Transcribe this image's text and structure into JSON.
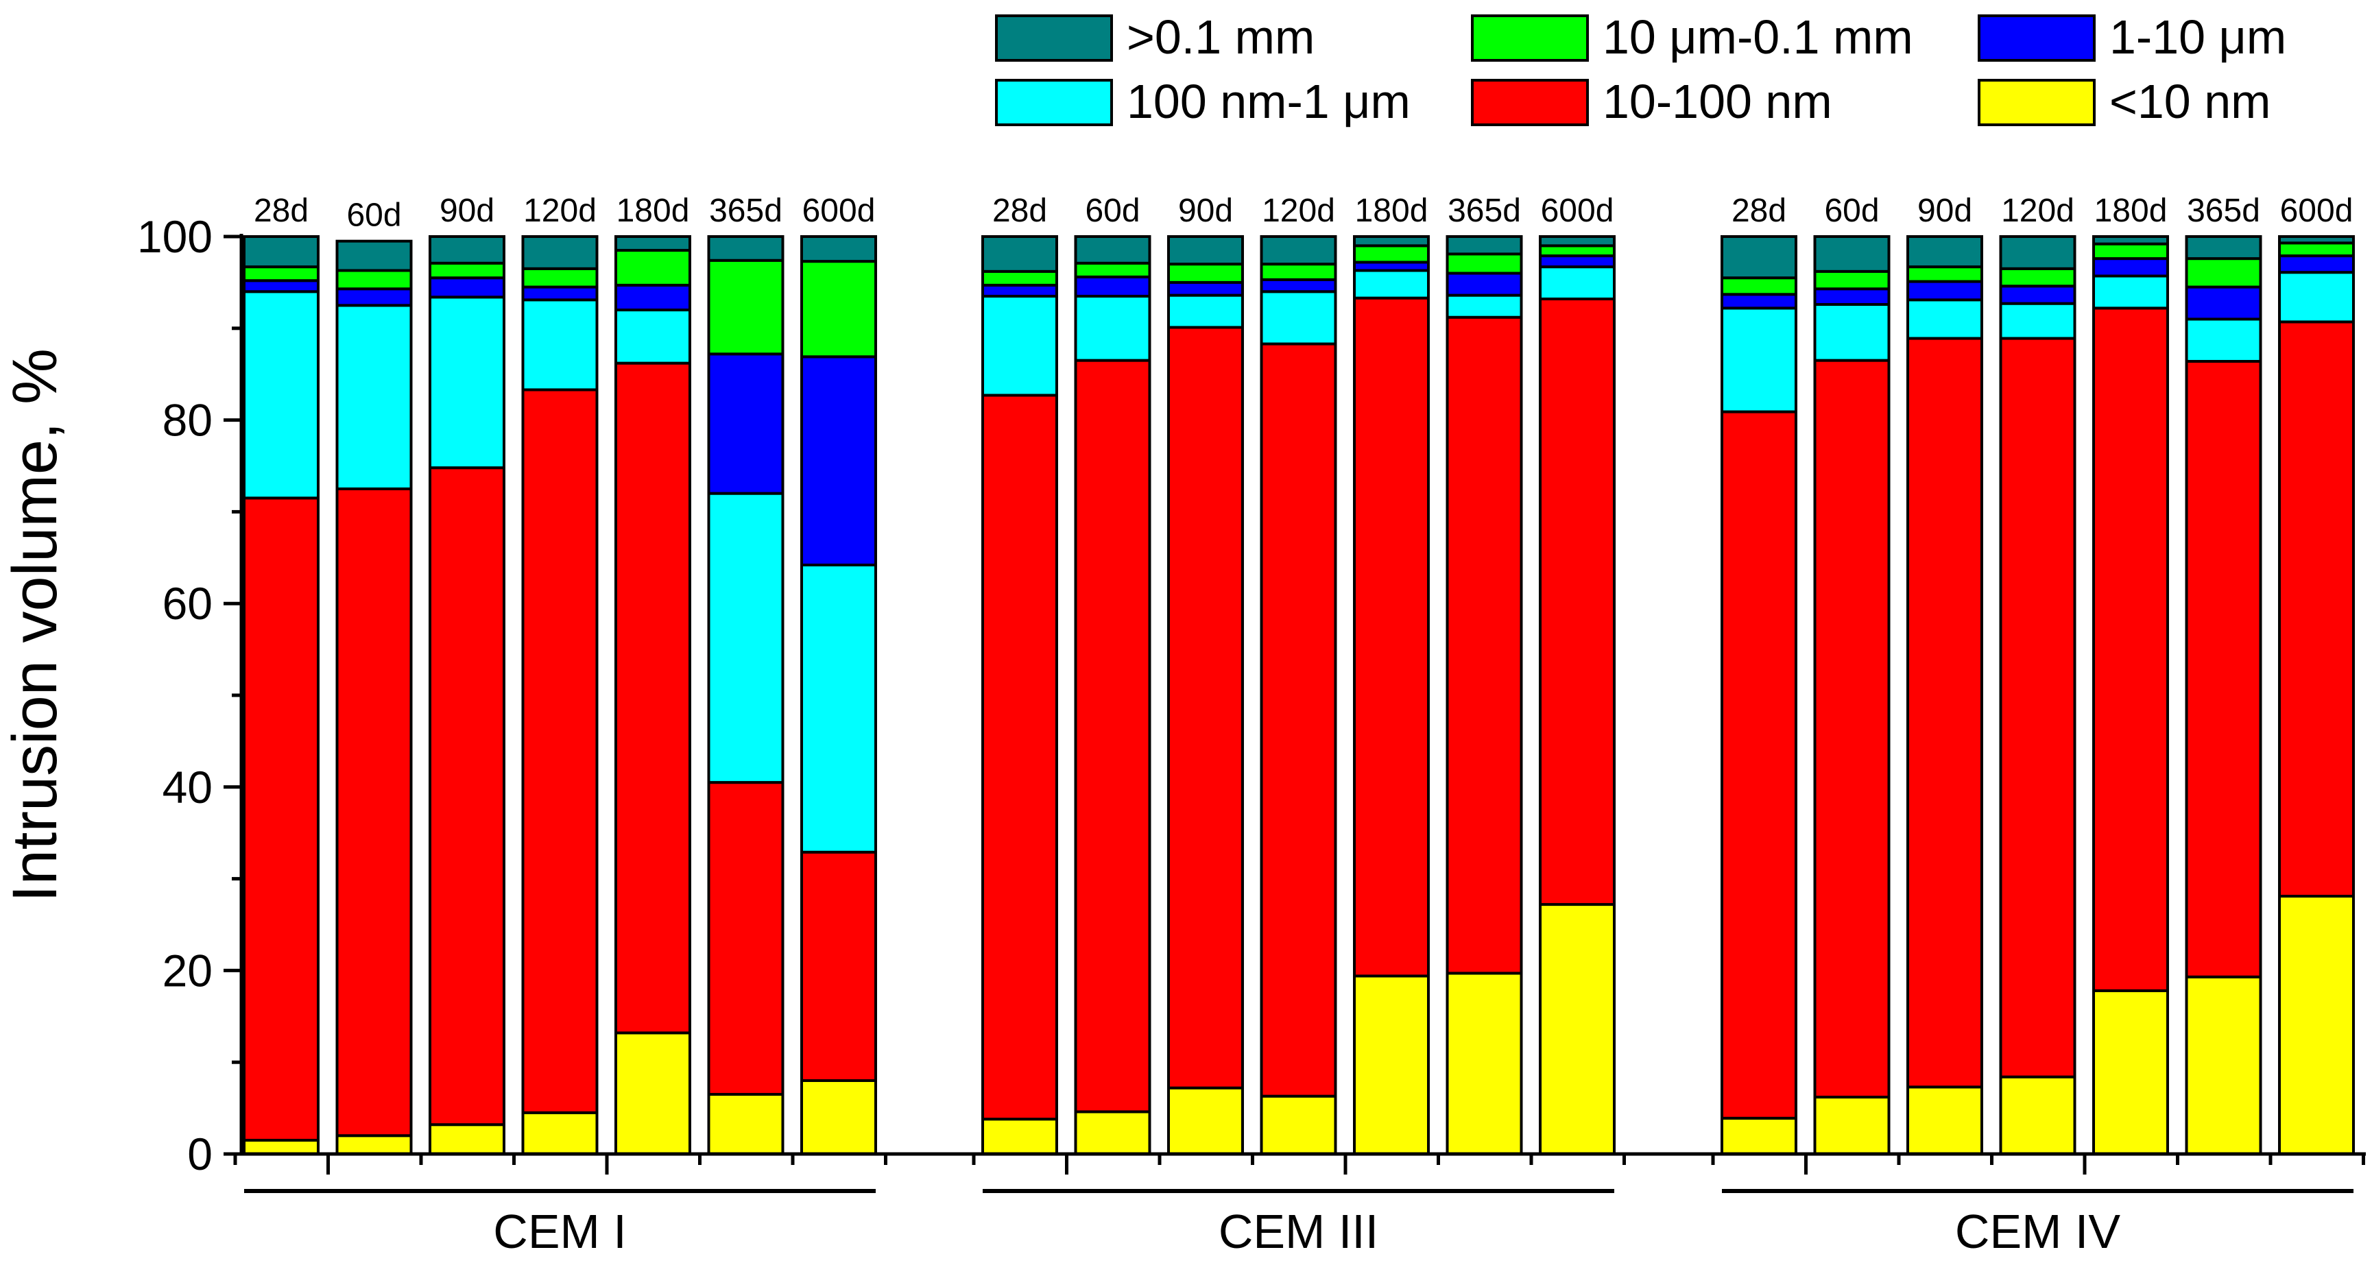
{
  "chart_data": {
    "type": "bar",
    "stacked": true,
    "title": "",
    "xlabel": "",
    "ylabel": "Intrusion volume, %",
    "ylim": [
      0,
      100
    ],
    "yticks": [
      "0",
      "20",
      "40",
      "60",
      "80",
      "100"
    ],
    "grid": false,
    "legend_position": "top-right",
    "groups": [
      {
        "label": "CEM I",
        "categories": [
          "28d",
          "60d",
          "90d",
          "120d",
          "180d",
          "365d",
          "600d"
        ],
        "total": [
          100,
          99.5,
          100,
          100,
          100,
          100,
          100
        ]
      },
      {
        "label": "CEM III",
        "categories": [
          "28d",
          "60d",
          "90d",
          "120d",
          "180d",
          "365d",
          "600d"
        ],
        "total": [
          100,
          100,
          100,
          100,
          100,
          100,
          100
        ]
      },
      {
        "label": "CEM IV",
        "categories": [
          "28d",
          "60d",
          "90d",
          "120d",
          "180d",
          "365d",
          "600d"
        ],
        "total": [
          100,
          100,
          100,
          100,
          100,
          100,
          100
        ]
      }
    ],
    "series": [
      {
        "name": "<10 nm",
        "color": "#ffff00",
        "values": [
          [
            1.5,
            2,
            3.2,
            4.5,
            13.2,
            6.5,
            8
          ],
          [
            3.8,
            4.6,
            7.2,
            6.3,
            19.4,
            19.7,
            27.2
          ],
          [
            3.9,
            6.2,
            7.3,
            8.4,
            17.8,
            19.3,
            28.1
          ]
        ]
      },
      {
        "name": "10-100 nm",
        "color": "#ff0000",
        "values": [
          [
            70,
            70.5,
            71.6,
            78.8,
            73,
            34,
            24.9
          ],
          [
            78.9,
            81.9,
            82.9,
            82,
            73.9,
            71.5,
            66
          ],
          [
            77,
            80.3,
            81.6,
            80.5,
            74.4,
            67.1,
            62.6
          ]
        ]
      },
      {
        "name": "100 nm-1 μm",
        "color": "#00ffff",
        "values": [
          [
            22.5,
            20,
            18.6,
            9.8,
            5.8,
            31.5,
            31.3
          ],
          [
            10.8,
            7,
            3.5,
            5.7,
            3,
            2.4,
            3.5
          ],
          [
            11.3,
            6.1,
            4.2,
            3.8,
            3.5,
            4.6,
            5.4
          ]
        ]
      },
      {
        "name": "1-10 μm",
        "color": "#0000ff",
        "values": [
          [
            1.2,
            1.8,
            2.1,
            1.4,
            2.7,
            15.2,
            22.7
          ],
          [
            1.2,
            2.1,
            1.4,
            1.3,
            0.9,
            2.4,
            1.2
          ],
          [
            1.5,
            1.7,
            2,
            1.9,
            1.9,
            3.5,
            1.8
          ]
        ]
      },
      {
        "name": "10 μm-0.1 mm",
        "color": "#00ff00",
        "values": [
          [
            1.5,
            2,
            1.6,
            2,
            3.8,
            10.2,
            10.4
          ],
          [
            1.5,
            1.5,
            2,
            1.7,
            1.8,
            2.1,
            1.1
          ],
          [
            1.8,
            1.9,
            1.6,
            1.9,
            1.6,
            3.1,
            1.4
          ]
        ]
      },
      {
        "name": ">0.1 mm",
        "color": "#008080",
        "values": [
          [
            3.3,
            3.2,
            2.9,
            3.5,
            1.5,
            2.6,
            2.7
          ],
          [
            3.8,
            2.9,
            3,
            3,
            1,
            1.9,
            1
          ],
          [
            4.5,
            3.8,
            3.3,
            3.5,
            0.8,
            2.4,
            0.7
          ]
        ]
      }
    ],
    "legend_order": [
      ">0.1 mm",
      "10 μm-0.1 mm",
      "1-10 μm",
      "100 nm-1 μm",
      "10-100 nm",
      "<10 nm"
    ]
  }
}
